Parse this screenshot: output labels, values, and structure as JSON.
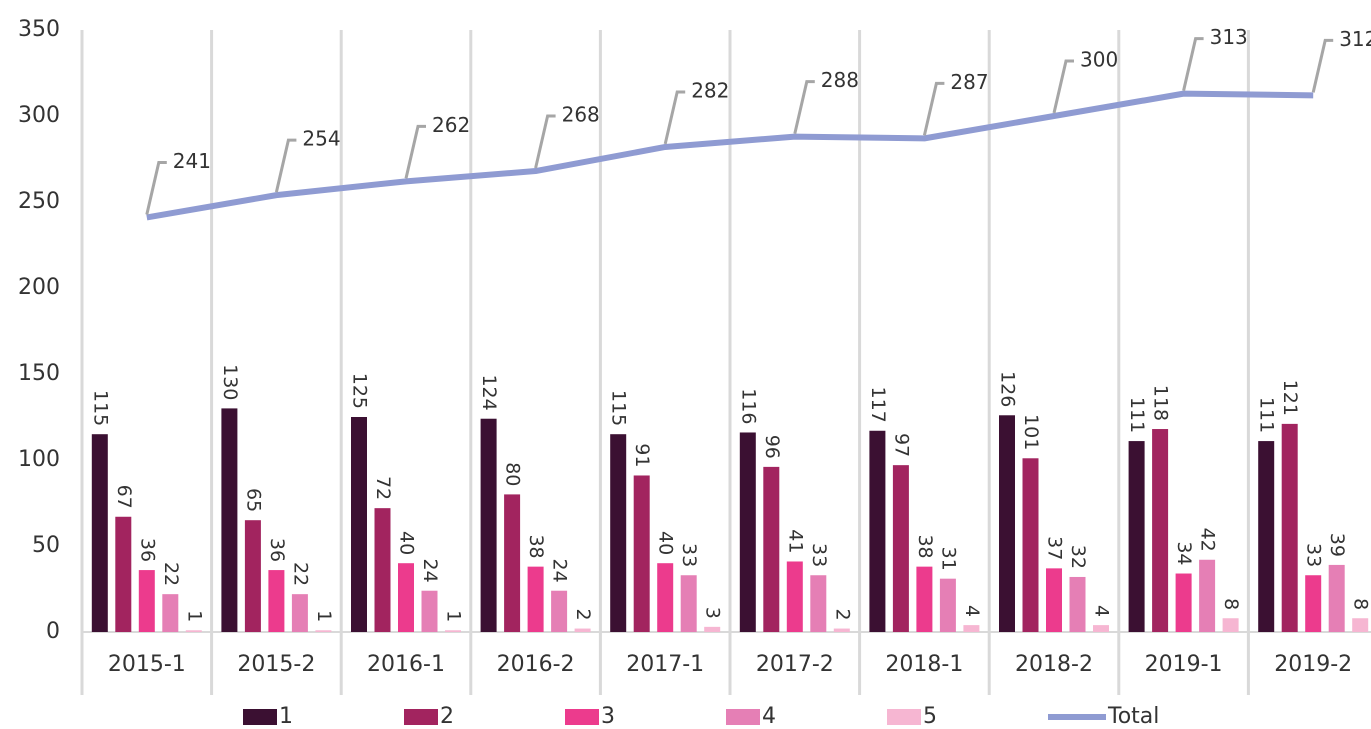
{
  "chart_data": {
    "type": "bar",
    "categories": [
      "2015-1",
      "2015-2",
      "2016-1",
      "2016-2",
      "2017-1",
      "2017-2",
      "2018-1",
      "2018-2",
      "2019-1",
      "2019-2"
    ],
    "series": [
      {
        "name": "1",
        "color": "#3b1032",
        "values": [
          115,
          130,
          125,
          124,
          115,
          116,
          117,
          126,
          111,
          111
        ]
      },
      {
        "name": "2",
        "color": "#a2245f",
        "values": [
          67,
          65,
          72,
          80,
          91,
          96,
          97,
          101,
          118,
          121
        ]
      },
      {
        "name": "3",
        "color": "#ec3b8d",
        "values": [
          36,
          36,
          40,
          38,
          40,
          41,
          38,
          37,
          34,
          33
        ]
      },
      {
        "name": "4",
        "color": "#e57fb5",
        "values": [
          22,
          22,
          24,
          24,
          33,
          33,
          31,
          32,
          42,
          39
        ]
      },
      {
        "name": "5",
        "color": "#f6b6d2",
        "values": [
          1,
          1,
          1,
          2,
          3,
          2,
          4,
          4,
          8,
          8
        ]
      },
      {
        "name": "Total",
        "type": "line",
        "color": "#8f9bd2",
        "values": [
          241,
          254,
          262,
          268,
          282,
          288,
          287,
          300,
          313,
          312
        ]
      }
    ],
    "ylim": [
      0,
      350
    ],
    "yticks": [
      0,
      50,
      100,
      150,
      200,
      250,
      300,
      350
    ],
    "grid": false,
    "legend": "bottom"
  }
}
